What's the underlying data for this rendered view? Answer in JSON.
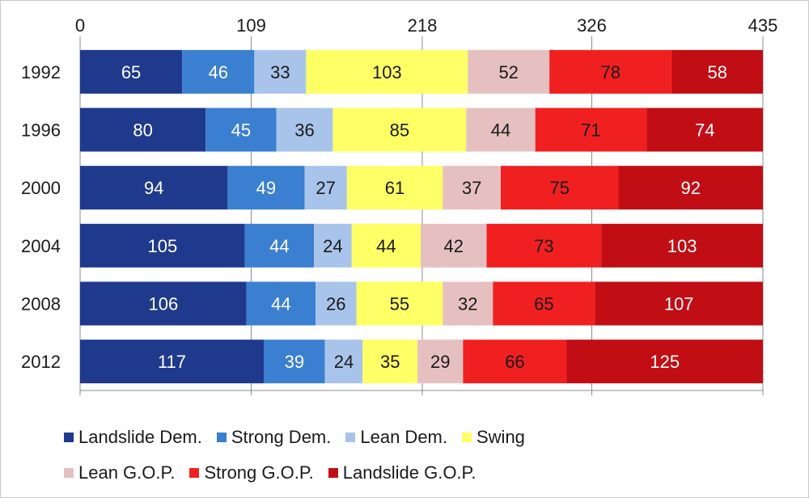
{
  "chart_data": {
    "type": "bar",
    "orientation": "horizontal",
    "stacked": true,
    "categories": [
      "1992",
      "1996",
      "2000",
      "2004",
      "2008",
      "2012"
    ],
    "series": [
      {
        "name": "Landslide Dem.",
        "color": "#1f3a8c",
        "values": [
          65,
          80,
          94,
          105,
          106,
          117
        ]
      },
      {
        "name": "Strong Dem.",
        "color": "#3b7fd1",
        "values": [
          46,
          45,
          49,
          44,
          44,
          39
        ]
      },
      {
        "name": "Lean Dem.",
        "color": "#a9c4ea",
        "values": [
          33,
          36,
          27,
          24,
          26,
          24
        ]
      },
      {
        "name": "Swing",
        "color": "#ffff66",
        "values": [
          103,
          85,
          61,
          44,
          55,
          35
        ]
      },
      {
        "name": "Lean G.O.P.",
        "color": "#e6c0c0",
        "values": [
          52,
          44,
          37,
          42,
          32,
          29
        ]
      },
      {
        "name": "Strong G.O.P.",
        "color": "#f02020",
        "values": [
          78,
          71,
          75,
          73,
          65,
          66
        ]
      },
      {
        "name": "Landslide G.O.P.",
        "color": "#c00e14",
        "values": [
          58,
          74,
          92,
          103,
          107,
          125
        ]
      }
    ],
    "xlim": [
      0,
      435
    ],
    "xticks": [
      "0",
      "109",
      "218",
      "326",
      "435"
    ],
    "xtick_values": [
      0,
      109,
      218,
      326,
      435
    ],
    "grid": true,
    "legend_position": "bottom",
    "label_colors": {
      "dark": "#ffffff",
      "light": "#1a1a1a"
    }
  }
}
